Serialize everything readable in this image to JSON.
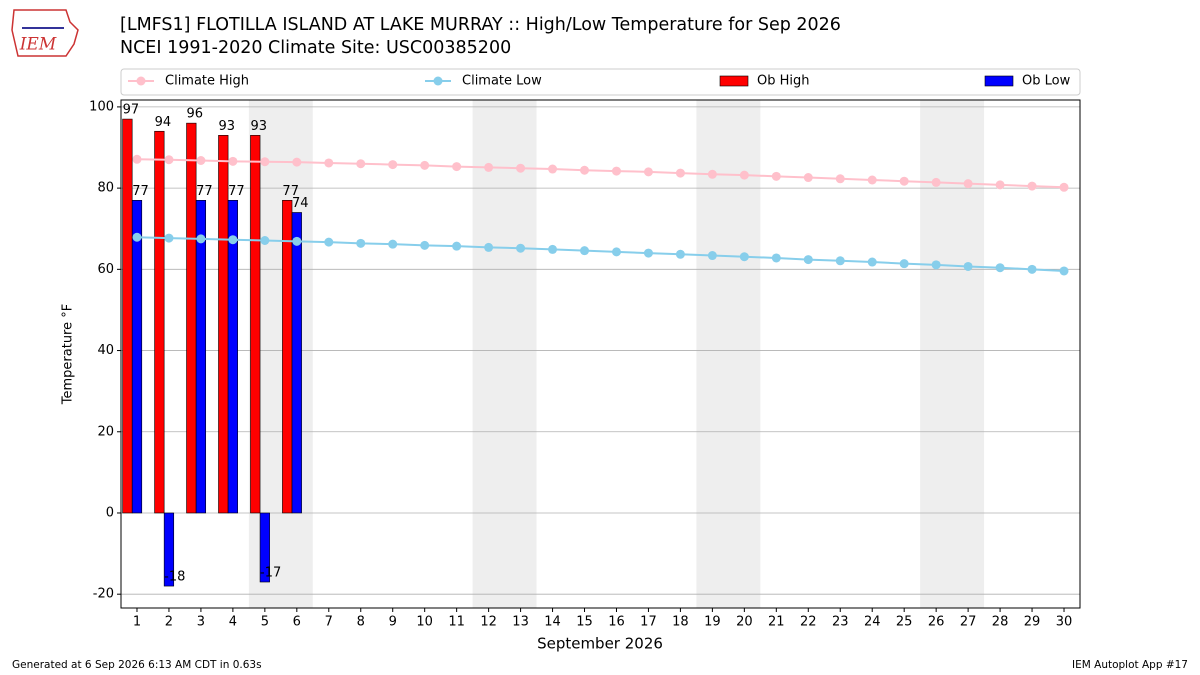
{
  "logo_text": "IEM",
  "footer_left": "Generated at 6 Sep 2026 6:13 AM CDT in 0.63s",
  "footer_right": "IEM Autoplot App #17",
  "chart_data": {
    "type": "bar",
    "title": "[LMFS1] FLOTILLA ISLAND AT LAKE MURRAY :: High/Low Temperature for Sep 2026",
    "subtitle": "NCEI 1991-2020 Climate Site: USC00385200",
    "x_label": "September 2026",
    "y_label": "Temperature °F",
    "x": [
      1,
      2,
      3,
      4,
      5,
      6,
      7,
      8,
      9,
      10,
      11,
      12,
      13,
      14,
      15,
      16,
      17,
      18,
      19,
      20,
      21,
      22,
      23,
      24,
      25,
      26,
      27,
      28,
      29,
      30
    ],
    "xlim": [
      0.5,
      30.5
    ],
    "xticks": [
      1,
      2,
      3,
      4,
      5,
      6,
      7,
      8,
      9,
      10,
      11,
      12,
      13,
      14,
      15,
      16,
      17,
      18,
      19,
      20,
      21,
      22,
      23,
      24,
      25,
      26,
      27,
      28,
      29,
      30
    ],
    "ylim": [
      -23.4,
      101.7
    ],
    "yticks": [
      -20,
      0,
      20,
      40,
      60,
      80,
      100
    ],
    "grid": true,
    "shaded_spans": [
      [
        4.5,
        6.5
      ],
      [
        11.5,
        13.5
      ],
      [
        18.5,
        20.5
      ],
      [
        25.5,
        27.5
      ]
    ],
    "shade_color": "#eeeeee",
    "series": [
      {
        "name": "Climate High",
        "type": "line",
        "color": "#ffc0cb",
        "values": [
          87.1,
          87.0,
          86.8,
          86.6,
          86.5,
          86.4,
          86.2,
          86.0,
          85.8,
          85.6,
          85.3,
          85.1,
          84.9,
          84.7,
          84.4,
          84.2,
          84.0,
          83.7,
          83.4,
          83.2,
          82.9,
          82.6,
          82.3,
          82.0,
          81.7,
          81.4,
          81.1,
          80.8,
          80.5,
          80.2
        ]
      },
      {
        "name": "Climate Low",
        "type": "line",
        "color": "#87ceeb",
        "values": [
          67.9,
          67.7,
          67.5,
          67.3,
          67.1,
          66.9,
          66.7,
          66.4,
          66.2,
          65.9,
          65.7,
          65.4,
          65.2,
          64.9,
          64.6,
          64.3,
          64.0,
          63.7,
          63.4,
          63.1,
          62.8,
          62.4,
          62.1,
          61.8,
          61.4,
          61.1,
          60.7,
          60.4,
          60.0,
          59.6
        ]
      },
      {
        "name": "Ob High",
        "type": "bar",
        "color": "#ff0000",
        "values": [
          97,
          94,
          96,
          93,
          93,
          77,
          null,
          null,
          null,
          null,
          null,
          null,
          null,
          null,
          null,
          null,
          null,
          null,
          null,
          null,
          null,
          null,
          null,
          null,
          null,
          null,
          null,
          null,
          null,
          null
        ]
      },
      {
        "name": "Ob Low",
        "type": "bar",
        "color": "#0000ff",
        "values": [
          77,
          -18,
          77,
          77,
          -17,
          74,
          null,
          null,
          null,
          null,
          null,
          null,
          null,
          null,
          null,
          null,
          null,
          null,
          null,
          null,
          null,
          null,
          null,
          null,
          null,
          null,
          null,
          null,
          null,
          null
        ]
      }
    ]
  }
}
